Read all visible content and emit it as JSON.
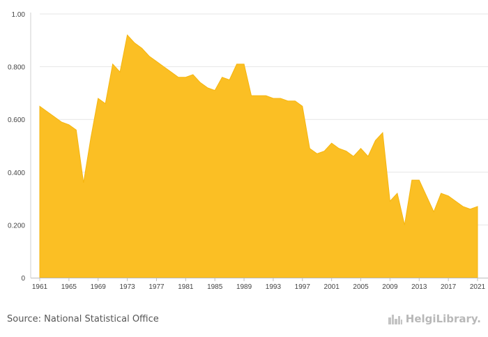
{
  "chart_data": {
    "type": "area",
    "title": "",
    "xlabel": "",
    "ylabel": "",
    "ylim": [
      0,
      1.0
    ],
    "yticks": [
      "0",
      "0.200",
      "0.400",
      "0.600",
      "0.800",
      "1.00"
    ],
    "xticks": [
      "1961",
      "1965",
      "1969",
      "1973",
      "1977",
      "1981",
      "1985",
      "1989",
      "1993",
      "1997",
      "2001",
      "2005",
      "2009",
      "2013",
      "2017",
      "2021"
    ],
    "grid": "horizontal",
    "color": "#fbbf24",
    "x": [
      1961,
      1962,
      1963,
      1964,
      1965,
      1966,
      1967,
      1968,
      1969,
      1970,
      1971,
      1972,
      1973,
      1974,
      1975,
      1976,
      1977,
      1978,
      1979,
      1980,
      1981,
      1982,
      1983,
      1984,
      1985,
      1986,
      1987,
      1988,
      1989,
      1990,
      1991,
      1992,
      1993,
      1994,
      1995,
      1996,
      1997,
      1998,
      1999,
      2000,
      2001,
      2002,
      2003,
      2004,
      2005,
      2006,
      2007,
      2008,
      2009,
      2010,
      2011,
      2012,
      2013,
      2014,
      2015,
      2016,
      2017,
      2018,
      2019,
      2020,
      2021
    ],
    "values": [
      0.65,
      0.63,
      0.61,
      0.59,
      0.58,
      0.56,
      0.36,
      0.53,
      0.68,
      0.66,
      0.81,
      0.78,
      0.92,
      0.89,
      0.87,
      0.84,
      0.82,
      0.8,
      0.78,
      0.76,
      0.76,
      0.77,
      0.74,
      0.72,
      0.71,
      0.76,
      0.75,
      0.81,
      0.81,
      0.69,
      0.69,
      0.69,
      0.68,
      0.68,
      0.67,
      0.67,
      0.65,
      0.49,
      0.47,
      0.48,
      0.51,
      0.49,
      0.48,
      0.46,
      0.49,
      0.46,
      0.52,
      0.55,
      0.29,
      0.32,
      0.2,
      0.37,
      0.37,
      0.31,
      0.25,
      0.32,
      0.31,
      0.29,
      0.27,
      0.26,
      0.27
    ]
  },
  "footer": {
    "source": "Source: National Statistical Office",
    "brand": "HelgiLibrary."
  },
  "icons": {
    "brand_logo": "city-skyline-icon"
  }
}
